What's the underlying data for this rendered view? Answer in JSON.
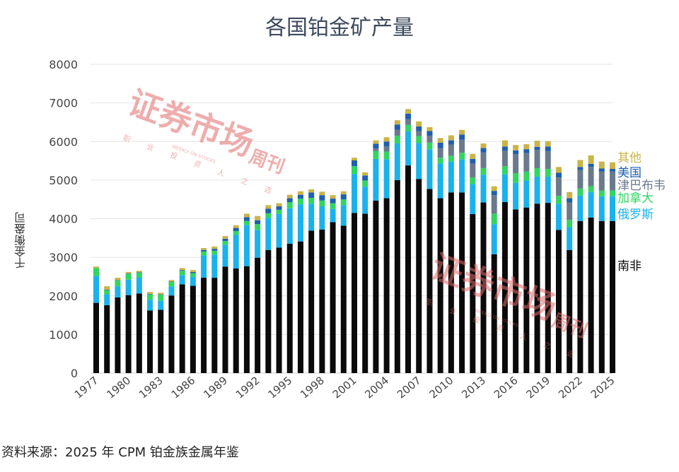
{
  "chart_data": {
    "type": "bar",
    "stacked": true,
    "title": "各国铂金矿产量",
    "ylabel": "千金衡盎司",
    "xlabel": "",
    "ylim": [
      0,
      8000
    ],
    "yticks": [
      0,
      1000,
      2000,
      3000,
      4000,
      5000,
      6000,
      7000,
      8000
    ],
    "xticks": [
      "1977",
      "1980",
      "1983",
      "1986",
      "1989",
      "1992",
      "1995",
      "1998",
      "2001",
      "2004",
      "2007",
      "2010",
      "2013",
      "2016",
      "2019",
      "2022",
      "2025"
    ],
    "grid": true,
    "legend_position": "right",
    "categories": [
      "1977",
      "1978",
      "1979",
      "1980",
      "1981",
      "1982",
      "1983",
      "1984",
      "1985",
      "1986",
      "1987",
      "1988",
      "1989",
      "1990",
      "1991",
      "1992",
      "1993",
      "1994",
      "1995",
      "1996",
      "1997",
      "1998",
      "1999",
      "2000",
      "2001",
      "2002",
      "2003",
      "2004",
      "2005",
      "2006",
      "2007",
      "2008",
      "2009",
      "2010",
      "2011",
      "2012",
      "2013",
      "2014",
      "2015",
      "2016",
      "2017",
      "2018",
      "2019",
      "2020",
      "2021",
      "2022",
      "2023",
      "2024",
      "2025"
    ],
    "series": [
      {
        "name": "南非",
        "color": "#0a0a0a",
        "values": [
          1820,
          1760,
          1960,
          2020,
          2060,
          1620,
          1640,
          2010,
          2300,
          2260,
          2470,
          2470,
          2760,
          2710,
          2770,
          2990,
          3190,
          3250,
          3350,
          3410,
          3690,
          3720,
          3910,
          3820,
          4150,
          4130,
          4470,
          4530,
          5000,
          5380,
          5030,
          4770,
          4530,
          4680,
          4680,
          4120,
          4420,
          3080,
          4430,
          4240,
          4290,
          4390,
          4410,
          3710,
          3190,
          3940,
          4030,
          3940,
          3940
        ]
      },
      {
        "name": "俄罗斯",
        "color": "#1ab2ec",
        "values": [
          700,
          280,
          290,
          400,
          420,
          280,
          230,
          230,
          240,
          230,
          580,
          600,
          560,
          870,
          1070,
          720,
          830,
          870,
          920,
          960,
          700,
          600,
          340,
          530,
          1010,
          700,
          1080,
          1010,
          950,
          880,
          930,
          1030,
          900,
          800,
          860,
          780,
          720,
          780,
          720,
          690,
          700,
          700,
          680,
          680,
          590,
          660,
          660,
          640,
          640
        ]
      },
      {
        "name": "加拿大",
        "color": "#30d660",
        "values": [
          200,
          110,
          150,
          150,
          120,
          140,
          160,
          120,
          110,
          100,
          100,
          100,
          100,
          100,
          100,
          150,
          120,
          110,
          160,
          150,
          150,
          150,
          150,
          150,
          200,
          160,
          200,
          200,
          200,
          170,
          180,
          170,
          150,
          150,
          170,
          170,
          170,
          270,
          210,
          250,
          230,
          220,
          200,
          200,
          190,
          180,
          150,
          150,
          150
        ]
      },
      {
        "name": "津巴布韦",
        "color": "#6a7a8c",
        "values": [
          0,
          0,
          0,
          0,
          0,
          0,
          0,
          0,
          0,
          0,
          0,
          0,
          0,
          0,
          0,
          0,
          0,
          0,
          0,
          0,
          0,
          0,
          0,
          0,
          0,
          0,
          70,
          130,
          150,
          150,
          130,
          180,
          250,
          290,
          340,
          360,
          410,
          480,
          400,
          490,
          480,
          470,
          460,
          480,
          450,
          480,
          500,
          490,
          490
        ]
      },
      {
        "name": "美国",
        "color": "#1f5fae",
        "values": [
          0,
          10,
          10,
          10,
          10,
          10,
          10,
          10,
          20,
          30,
          40,
          50,
          60,
          80,
          100,
          100,
          120,
          90,
          100,
          100,
          140,
          140,
          120,
          130,
          150,
          130,
          120,
          130,
          140,
          140,
          120,
          120,
          140,
          110,
          130,
          120,
          110,
          110,
          110,
          100,
          100,
          80,
          120,
          120,
          110,
          80,
          80,
          80,
          70
        ]
      },
      {
        "name": "其他",
        "color": "#c9b448",
        "values": [
          40,
          90,
          60,
          40,
          40,
          50,
          40,
          40,
          50,
          50,
          50,
          60,
          70,
          70,
          90,
          110,
          90,
          80,
          90,
          90,
          80,
          90,
          90,
          80,
          70,
          80,
          90,
          110,
          110,
          120,
          130,
          100,
          120,
          130,
          120,
          130,
          120,
          120,
          160,
          140,
          130,
          160,
          140,
          150,
          160,
          180,
          220,
          180,
          170
        ]
      }
    ]
  },
  "legend_label_order": [
    "其他",
    "美国",
    "津巴布韦",
    "加拿大",
    "俄罗斯",
    "南非"
  ],
  "source": "资料来源：2025 年 CPM 铂金族金属年鉴",
  "watermark": {
    "main": "证券市场",
    "sub": "周刊",
    "tagline": "职业投资人之选",
    "english": "WEEKLY ON STOCKS"
  }
}
